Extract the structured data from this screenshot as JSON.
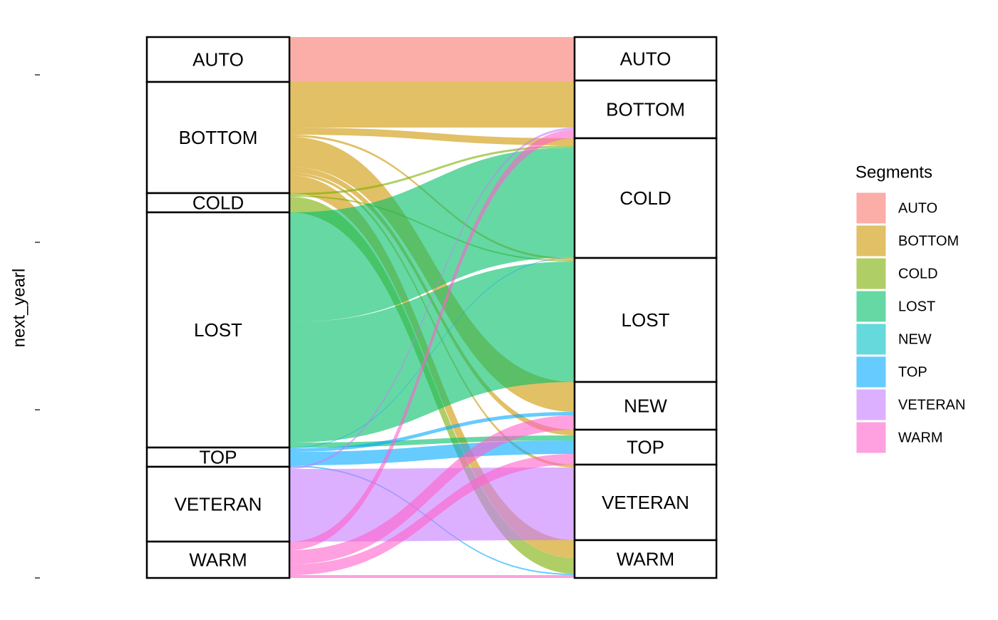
{
  "chart_data": {
    "type": "alluvial",
    "y_label": "next_yearl",
    "legend_title": "Segments",
    "ylim": [
      0,
      759
    ],
    "yticks": [
      0,
      236,
      471,
      706
    ],
    "segments": [
      {
        "name": "AUTO",
        "color": "#F8766D"
      },
      {
        "name": "BOTTOM",
        "color": "#CD9600"
      },
      {
        "name": "COLD",
        "color": "#7CAE00"
      },
      {
        "name": "LOST",
        "color": "#00BE67"
      },
      {
        "name": "NEW",
        "color": "#00BFC4"
      },
      {
        "name": "TOP",
        "color": "#00A9FF"
      },
      {
        "name": "VETERAN",
        "color": "#C77CFF"
      },
      {
        "name": "WARM",
        "color": "#FF61CC"
      }
    ],
    "strata": {
      "left": [
        "AUTO",
        "BOTTOM",
        "COLD",
        "LOST",
        "TOP",
        "VETERAN",
        "WARM"
      ],
      "right": [
        "AUTO",
        "BOTTOM",
        "COLD",
        "LOST",
        "NEW",
        "TOP",
        "VETERAN",
        "WARM"
      ]
    },
    "flows": [
      {
        "from": "AUTO",
        "to": "AUTO",
        "value": 61
      },
      {
        "from": "AUTO",
        "to": "BOTTOM",
        "value": 2
      },
      {
        "from": "BOTTOM",
        "to": "BOTTOM",
        "value": 64
      },
      {
        "from": "BOTTOM",
        "to": "COLD",
        "value": 10
      },
      {
        "from": "BOTTOM",
        "to": "LOST",
        "value": 3
      },
      {
        "from": "BOTTOM",
        "to": "NEW",
        "value": 42
      },
      {
        "from": "BOTTOM",
        "to": "TOP",
        "value": 8
      },
      {
        "from": "BOTTOM",
        "to": "VETERAN",
        "value": 4
      },
      {
        "from": "BOTTOM",
        "to": "WARM",
        "value": 25
      },
      {
        "from": "COLD",
        "to": "COLD",
        "value": 3
      },
      {
        "from": "COLD",
        "to": "LOST",
        "value": 2
      },
      {
        "from": "COLD",
        "to": "WARM",
        "value": 22
      },
      {
        "from": "LOST",
        "to": "COLD",
        "value": 154
      },
      {
        "from": "LOST",
        "to": "LOST",
        "value": 169
      },
      {
        "from": "LOST",
        "to": "TOP",
        "value": 7
      },
      {
        "from": "TOP",
        "to": "COLD",
        "value": 1
      },
      {
        "from": "TOP",
        "to": "NEW",
        "value": 5
      },
      {
        "from": "TOP",
        "to": "TOP",
        "value": 19
      },
      {
        "from": "TOP",
        "to": "WARM",
        "value": 2
      },
      {
        "from": "VETERAN",
        "to": "BOTTOM",
        "value": 3
      },
      {
        "from": "VETERAN",
        "to": "VETERAN",
        "value": 102
      },
      {
        "from": "WARM",
        "to": "BOTTOM",
        "value": 12
      },
      {
        "from": "WARM",
        "to": "NEW",
        "value": 20
      },
      {
        "from": "WARM",
        "to": "TOP",
        "value": 15
      },
      {
        "from": "WARM",
        "to": "WARM",
        "value": 4
      }
    ]
  }
}
